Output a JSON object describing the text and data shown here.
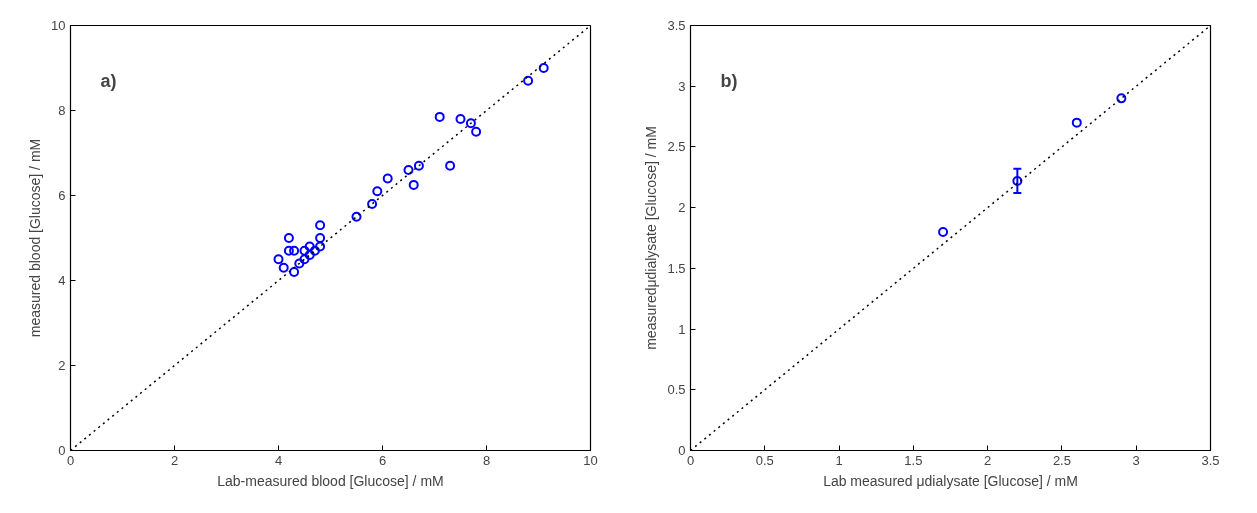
{
  "chart_data": [
    {
      "type": "scatter",
      "xlabel": "Lab-measured blood [Glucose] / mM",
      "ylabel": "measured blood [Glucose] / mM",
      "annotations": [
        "a)"
      ],
      "xlim": [
        0,
        10
      ],
      "ylim": [
        0,
        10
      ],
      "xticks": [
        0,
        2,
        4,
        6,
        8,
        10
      ],
      "yticks": [
        0,
        2,
        4,
        6,
        8,
        10
      ],
      "marker": "circle",
      "grid": false,
      "series": [
        {
          "color": "#0000ff",
          "x": [
            4.0,
            4.1,
            4.2,
            4.2,
            4.3,
            4.3,
            4.4,
            4.5,
            4.5,
            4.6,
            4.6,
            4.7,
            4.8,
            4.8,
            4.8,
            5.5,
            5.8,
            5.9,
            6.1,
            6.5,
            6.6,
            6.7,
            7.1,
            7.3,
            7.5,
            7.7,
            7.8,
            8.8,
            9.1
          ],
          "values": [
            4.5,
            4.3,
            5.0,
            4.7,
            4.7,
            4.2,
            4.4,
            4.5,
            4.7,
            4.8,
            4.6,
            4.7,
            4.8,
            5.0,
            5.3,
            5.5,
            5.8,
            6.1,
            6.4,
            6.6,
            6.25,
            6.7,
            7.85,
            6.7,
            7.8,
            7.7,
            7.5,
            8.7,
            9.0
          ]
        },
        {
          "type": "line",
          "color": "#000000",
          "line_style": "dotted",
          "marker": "none",
          "x": [
            0,
            10
          ],
          "values": [
            0,
            10
          ]
        }
      ]
    },
    {
      "type": "scatter",
      "xlabel": "Lab measured μdialysate [Glucose] / mM",
      "ylabel": "measuredμdialysate [Glucose] / mM",
      "annotations": [
        "b)"
      ],
      "xlim": [
        0,
        3.5
      ],
      "ylim": [
        0,
        3.5
      ],
      "xticks": [
        0,
        0.5,
        1,
        1.5,
        2,
        2.5,
        3,
        3.5
      ],
      "yticks": [
        0,
        0.5,
        1,
        1.5,
        2,
        2.5,
        3,
        3.5
      ],
      "marker": "circle",
      "grid": false,
      "series": [
        {
          "color": "#0000ff",
          "x": [
            1.7,
            2.2,
            2.6,
            2.9
          ],
          "values": [
            1.8,
            2.22,
            2.7,
            2.9
          ],
          "errors": [
            null,
            0.1,
            null,
            null
          ]
        },
        {
          "type": "line",
          "color": "#000000",
          "line_style": "dotted",
          "marker": "none",
          "x": [
            0,
            3.5
          ],
          "values": [
            0,
            3.5
          ]
        }
      ]
    }
  ]
}
